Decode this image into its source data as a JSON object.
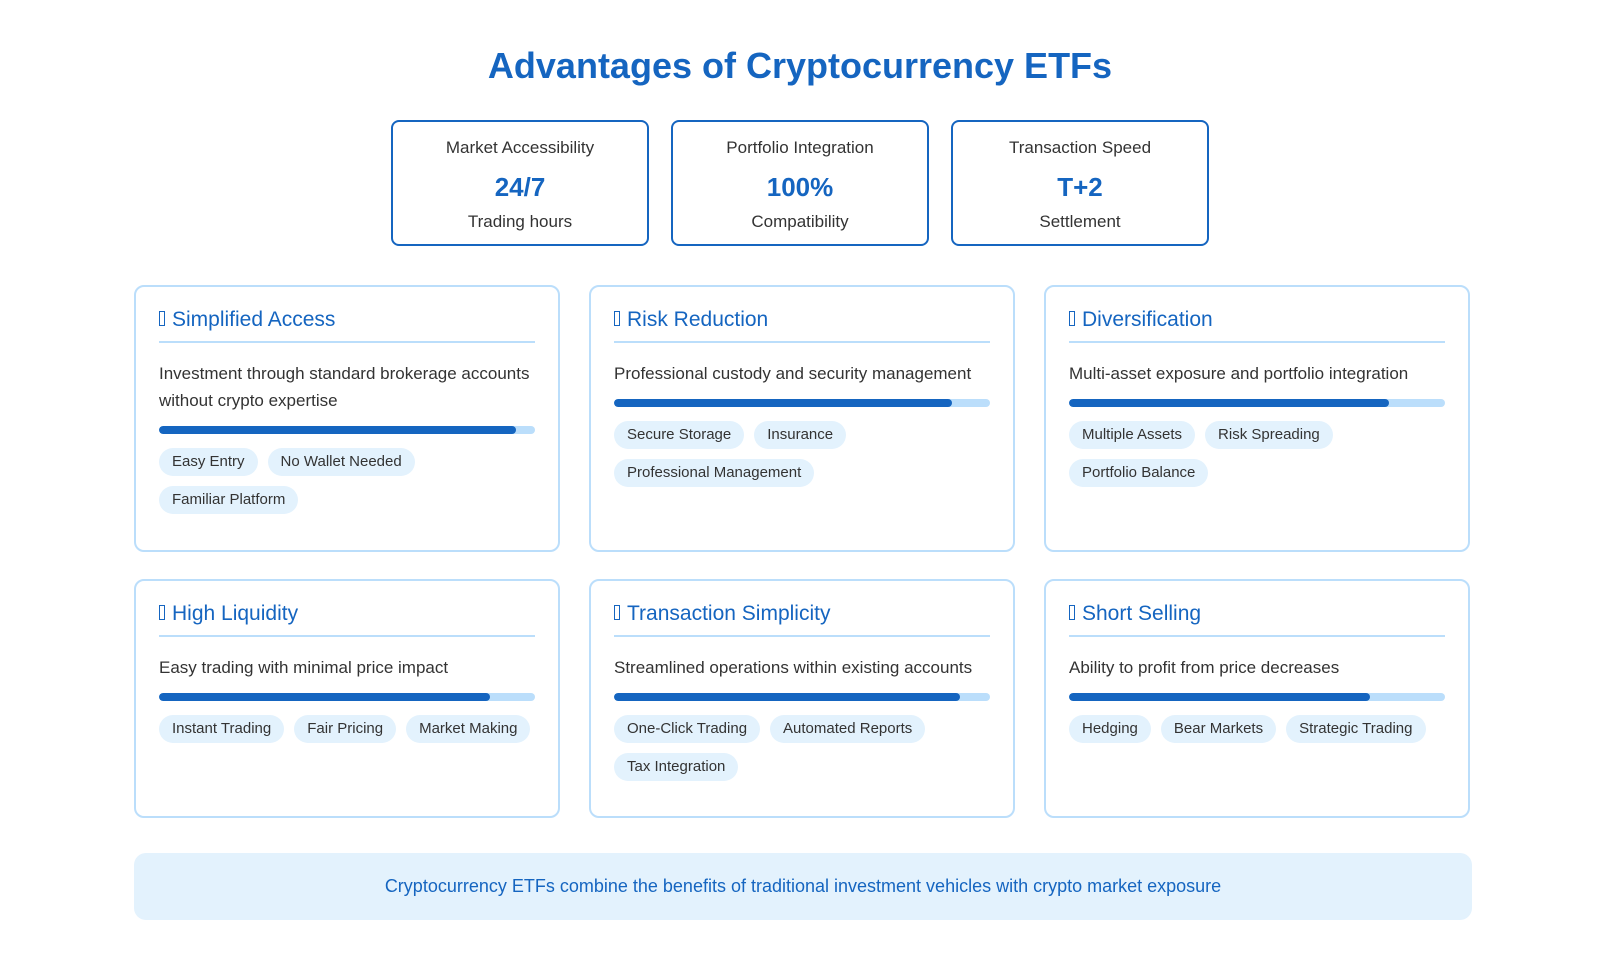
{
  "page": {
    "title": "Advantages of Cryptocurrency ETFs",
    "footer": "Cryptocurrency ETFs combine the benefits of traditional investment vehicles with crypto market exposure"
  },
  "colors": {
    "accent": "#1565c0",
    "light_accent": "#bbdefb",
    "tag_bg": "#e3f2fd"
  },
  "stats": [
    {
      "label": "Market Accessibility",
      "value": "24/7",
      "sub": "Trading hours"
    },
    {
      "label": "Portfolio Integration",
      "value": "100%",
      "sub": "Compatibility"
    },
    {
      "label": "Transaction Speed",
      "value": "T+2",
      "sub": "Settlement"
    }
  ],
  "cards": [
    {
      "title": "Simplified Access",
      "icon": "glyph-placeholder-icon",
      "desc": "Investment through standard brokerage accounts without crypto expertise",
      "progress": 0.95,
      "tags": [
        "Easy Entry",
        "No Wallet Needed",
        "Familiar Platform"
      ]
    },
    {
      "title": "Risk Reduction",
      "icon": "glyph-placeholder-icon",
      "desc": "Professional custody and security management",
      "progress": 0.9,
      "tags": [
        "Secure Storage",
        "Insurance",
        "Professional Management"
      ]
    },
    {
      "title": "Diversification",
      "icon": "glyph-placeholder-icon",
      "desc": "Multi-asset exposure and portfolio integration",
      "progress": 0.85,
      "tags": [
        "Multiple Assets",
        "Risk Spreading",
        "Portfolio Balance"
      ]
    },
    {
      "title": "High Liquidity",
      "icon": "glyph-placeholder-icon",
      "desc": "Easy trading with minimal price impact",
      "progress": 0.88,
      "tags": [
        "Instant Trading",
        "Fair Pricing",
        "Market Making"
      ]
    },
    {
      "title": "Transaction Simplicity",
      "icon": "glyph-placeholder-icon",
      "desc": "Streamlined operations within existing accounts",
      "progress": 0.92,
      "tags": [
        "One-Click Trading",
        "Automated Reports",
        "Tax Integration"
      ]
    },
    {
      "title": "Short Selling",
      "icon": "glyph-placeholder-icon",
      "desc": "Ability to profit from price decreases",
      "progress": 0.8,
      "tags": [
        "Hedging",
        "Bear Markets",
        "Strategic Trading"
      ]
    }
  ]
}
